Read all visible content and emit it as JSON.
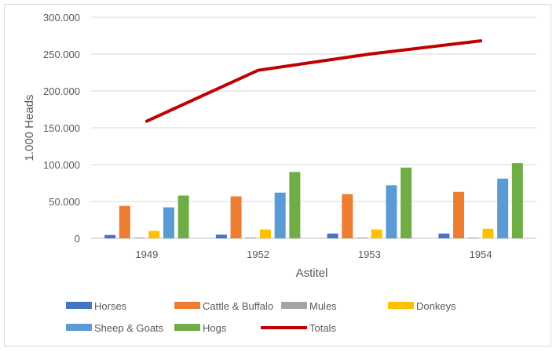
{
  "chart_data": {
    "type": "bar",
    "title": "",
    "xlabel": "Astitel",
    "ylabel": "1.000 Heads",
    "categories": [
      "1949",
      "1952",
      "1953",
      "1954"
    ],
    "ylim": [
      0,
      300000
    ],
    "y_ticks": [
      0,
      50000,
      100000,
      150000,
      200000,
      250000,
      300000
    ],
    "y_tick_labels": [
      "0",
      "50.000",
      "100.000",
      "150.000",
      "200.000",
      "250.000",
      "300.000"
    ],
    "grid": true,
    "legend_position": "bottom",
    "series": [
      {
        "name": "Horses",
        "type": "bar",
        "color": "#4472c4",
        "values": [
          4500,
          5000,
          6500,
          6500
        ]
      },
      {
        "name": "Cattle & Buffalo",
        "type": "bar",
        "color": "#ed7d31",
        "values": [
          44000,
          57000,
          60000,
          63000
        ]
      },
      {
        "name": "Mules",
        "type": "bar",
        "color": "#a5a5a5",
        "values": [
          1000,
          1000,
          1000,
          1000
        ]
      },
      {
        "name": "Donkeys",
        "type": "bar",
        "color": "#ffc000",
        "values": [
          10000,
          12000,
          12000,
          13000
        ]
      },
      {
        "name": "Sheep & Goats",
        "type": "bar",
        "color": "#5b9bd5",
        "values": [
          42000,
          62000,
          72000,
          81000
        ]
      },
      {
        "name": "Hogs",
        "type": "bar",
        "color": "#70ad47",
        "values": [
          58000,
          90000,
          96000,
          102000
        ]
      },
      {
        "name": "Totals",
        "type": "line",
        "color": "#c00000",
        "values": [
          159000,
          228000,
          250000,
          268000
        ]
      }
    ]
  }
}
